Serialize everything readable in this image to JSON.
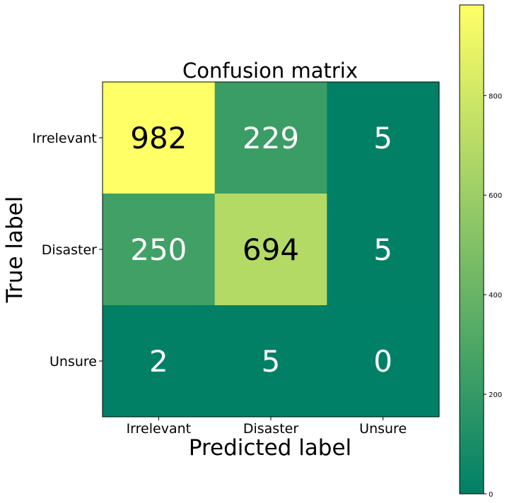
{
  "chart_data": {
    "type": "heatmap",
    "title": "Confusion matrix",
    "xlabel": "Predicted label",
    "ylabel": "True label",
    "x_categories": [
      "Irrelevant",
      "Disaster",
      "Unsure"
    ],
    "y_categories": [
      "Irrelevant",
      "Disaster",
      "Unsure"
    ],
    "values": [
      [
        982,
        229,
        5
      ],
      [
        250,
        694,
        5
      ],
      [
        2,
        5,
        0
      ]
    ],
    "colormap": "summer",
    "colorbar": {
      "range": [
        0,
        982
      ],
      "ticks": [
        0,
        200,
        400,
        600,
        800
      ]
    }
  }
}
